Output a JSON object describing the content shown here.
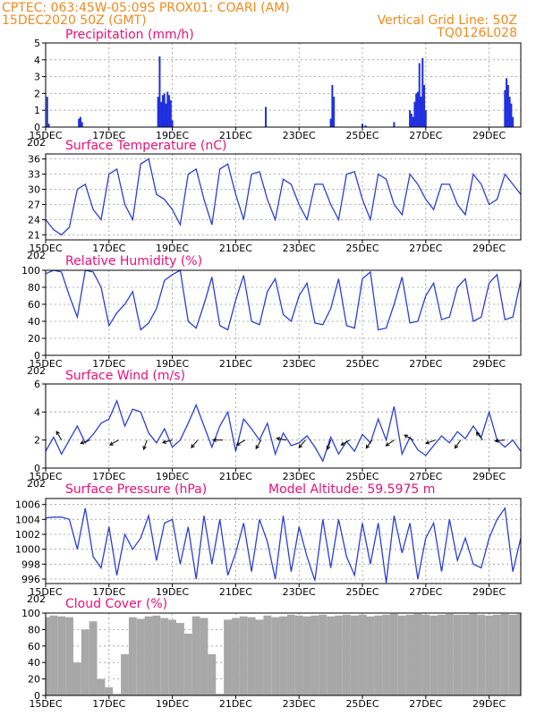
{
  "header": {
    "line1": "CPTEC:   063:45W-05:09S   PROX01: COARI (AM)",
    "line2_left": "15DEC2020 50Z (GMT)",
    "line2_right": "Vertical Grid Line: 50Z",
    "line3_right": "TQ0126L028"
  },
  "colors": {
    "header": "#f08a1e",
    "title": "#e8107a",
    "line": "#2b3fd6",
    "bar": "#1f2fe0",
    "cloud": "#a8a8a8",
    "arrow": "#000000"
  },
  "x_axis": {
    "ticks": [
      "15DEC",
      "17DEC",
      "19DEC",
      "21DEC",
      "23DEC",
      "25DEC",
      "27DEC",
      "29DEC"
    ],
    "stub": "202"
  },
  "chart_data": [
    {
      "id": "precip",
      "type": "bar",
      "title": "Precipitation (mm/h)",
      "ylim": [
        0,
        5
      ],
      "yticks": [
        "0",
        "1",
        "2",
        "3",
        "4",
        "5"
      ],
      "x_days": [
        0.05,
        0.1,
        1.05,
        1.1,
        1.15,
        3.55,
        3.6,
        3.65,
        3.7,
        3.75,
        3.8,
        3.85,
        3.9,
        3.95,
        4.0,
        6.95,
        9.0,
        9.05,
        9.1,
        10.0,
        10.1,
        11.0,
        11.5,
        11.55,
        11.6,
        11.65,
        11.7,
        11.75,
        11.8,
        11.85,
        11.9,
        11.95,
        12.0,
        14.5,
        14.55,
        14.6,
        14.65,
        14.7,
        14.75
      ],
      "values": [
        1.8,
        0.2,
        0.5,
        0.6,
        0.3,
        1.8,
        4.2,
        1.5,
        1.9,
        2.0,
        1.4,
        2.1,
        1.9,
        1.6,
        0.4,
        1.2,
        0.5,
        2.5,
        1.8,
        0.2,
        0.1,
        0.3,
        1.0,
        0.8,
        0.6,
        1.5,
        2.0,
        2.1,
        3.8,
        1.8,
        4.1,
        2.5,
        1.0,
        2.2,
        2.9,
        2.5,
        1.8,
        1.4,
        0.6
      ]
    },
    {
      "id": "temp",
      "type": "line",
      "title": "Surface Temperature (nC)",
      "ylim": [
        20,
        37
      ],
      "yticks": [
        "21",
        "24",
        "27",
        "30",
        "33",
        "36"
      ],
      "x_days": [
        0.0,
        0.25,
        0.5,
        0.75,
        1.0,
        1.25,
        1.5,
        1.75,
        2.0,
        2.25,
        2.5,
        2.75,
        3.0,
        3.25,
        3.5,
        3.75,
        4.0,
        4.25,
        4.5,
        4.75,
        5.0,
        5.25,
        5.5,
        5.75,
        6.0,
        6.25,
        6.5,
        6.75,
        7.0,
        7.25,
        7.5,
        7.75,
        8.0,
        8.25,
        8.5,
        8.75,
        9.0,
        9.25,
        9.5,
        9.75,
        10.0,
        10.25,
        10.5,
        10.75,
        11.0,
        11.25,
        11.5,
        11.75,
        12.0,
        12.25,
        12.5,
        12.75,
        13.0,
        13.25,
        13.5,
        13.75,
        14.0,
        14.25,
        14.5,
        14.75,
        15.0
      ],
      "values": [
        24.0,
        22.0,
        21.0,
        22.5,
        30.0,
        31.0,
        26.0,
        24.0,
        33.0,
        34.0,
        27.0,
        24.0,
        35.0,
        36.0,
        29.0,
        28.0,
        26.0,
        23.0,
        33.0,
        34.0,
        28.0,
        23.0,
        34.0,
        35.0,
        29.0,
        24.0,
        33.0,
        33.5,
        28.0,
        24.0,
        32.0,
        31.0,
        27.0,
        24.0,
        31.0,
        31.0,
        27.0,
        24.0,
        33.0,
        33.5,
        28.0,
        24.0,
        33.0,
        32.0,
        27.0,
        25.0,
        33.0,
        31.0,
        28.0,
        26.0,
        31.0,
        31.0,
        27.0,
        25.0,
        33.0,
        31.0,
        27.0,
        28.0,
        33.0,
        31.0,
        29.0
      ]
    },
    {
      "id": "rh",
      "type": "line",
      "title": "Relative Humidity (%)",
      "ylim": [
        0,
        100
      ],
      "yticks": [
        "0",
        "20",
        "40",
        "60",
        "80",
        "100"
      ],
      "x_days": [
        0.0,
        0.25,
        0.5,
        0.75,
        1.0,
        1.25,
        1.5,
        1.75,
        2.0,
        2.25,
        2.5,
        2.75,
        3.0,
        3.25,
        3.5,
        3.75,
        4.0,
        4.25,
        4.5,
        4.75,
        5.0,
        5.25,
        5.5,
        5.75,
        6.0,
        6.25,
        6.5,
        6.75,
        7.0,
        7.25,
        7.5,
        7.75,
        8.0,
        8.25,
        8.5,
        8.75,
        9.0,
        9.25,
        9.5,
        9.75,
        10.0,
        10.25,
        10.5,
        10.75,
        11.0,
        11.25,
        11.5,
        11.75,
        12.0,
        12.25,
        12.5,
        12.75,
        13.0,
        13.25,
        13.5,
        13.75,
        14.0,
        14.25,
        14.5,
        14.75,
        15.0
      ],
      "values": [
        96.0,
        100.0,
        98.0,
        70.0,
        45.0,
        100.0,
        98.0,
        80.0,
        35.0,
        50.0,
        60.0,
        75.0,
        30.0,
        38.0,
        55.0,
        88.0,
        95.0,
        100.0,
        40.0,
        32.0,
        60.0,
        92.0,
        35.0,
        30.0,
        65.0,
        94.0,
        40.0,
        36.0,
        75.0,
        90.0,
        48.0,
        40.0,
        70.0,
        85.0,
        38.0,
        36.0,
        55.0,
        90.0,
        35.0,
        32.0,
        90.0,
        98.0,
        30.0,
        32.0,
        60.0,
        92.0,
        38.0,
        40.0,
        70.0,
        85.0,
        42.0,
        45.0,
        80.0,
        90.0,
        40.0,
        45.0,
        85.0,
        95.0,
        42.0,
        45.0,
        88.0
      ]
    },
    {
      "id": "wind",
      "type": "line",
      "title": "Surface Wind (m/s)",
      "ylim": [
        0,
        6
      ],
      "yticks": [
        "0",
        "2",
        "4",
        "6"
      ],
      "x_days": [
        0.0,
        0.25,
        0.5,
        0.75,
        1.0,
        1.25,
        1.5,
        1.75,
        2.0,
        2.25,
        2.5,
        2.75,
        3.0,
        3.25,
        3.5,
        3.75,
        4.0,
        4.25,
        4.5,
        4.75,
        5.0,
        5.25,
        5.5,
        5.75,
        6.0,
        6.25,
        6.5,
        6.75,
        7.0,
        7.25,
        7.5,
        7.75,
        8.0,
        8.25,
        8.5,
        8.75,
        9.0,
        9.25,
        9.5,
        9.75,
        10.0,
        10.25,
        10.5,
        10.75,
        11.0,
        11.25,
        11.5,
        11.75,
        12.0,
        12.25,
        12.5,
        12.75,
        13.0,
        13.25,
        13.5,
        13.75,
        14.0,
        14.25,
        14.5,
        14.75,
        15.0
      ],
      "values": [
        1.2,
        2.2,
        1.0,
        2.0,
        3.0,
        1.8,
        2.4,
        3.2,
        3.5,
        4.8,
        3.0,
        4.2,
        4.0,
        2.5,
        1.8,
        2.8,
        1.5,
        2.0,
        3.2,
        4.5,
        3.0,
        1.5,
        3.0,
        4.0,
        1.2,
        3.5,
        2.8,
        2.0,
        3.2,
        1.0,
        2.5,
        1.6,
        1.8,
        2.3,
        1.5,
        0.5,
        2.2,
        1.0,
        1.9,
        1.2,
        2.4,
        1.8,
        3.5,
        2.0,
        4.4,
        1.0,
        2.2,
        1.3,
        0.9,
        1.6,
        2.3,
        1.8,
        2.6,
        2.1,
        3.0,
        2.2,
        4.0,
        2.0,
        1.5,
        2.0,
        1.2
      ],
      "arrow_x_days": [
        0.5,
        1.4,
        2.3,
        3.2,
        4.0,
        4.8,
        5.6,
        6.3,
        6.8,
        7.6,
        8.2,
        9.0,
        9.6,
        10.3,
        11.0,
        11.6,
        12.3,
        13.1,
        13.8,
        14.5
      ],
      "arrow_dir_deg": [
        120,
        200,
        210,
        250,
        195,
        230,
        180,
        210,
        240,
        170,
        230,
        250,
        210,
        235,
        215,
        150,
        200,
        235,
        130,
        185
      ]
    },
    {
      "id": "pres",
      "type": "line",
      "title": "Surface Pressure (hPa)",
      "annotation": "Model Altitude: 59.5975  m",
      "ylim": [
        995.4,
        1006.8
      ],
      "yticks": [
        "996",
        "998",
        "1000",
        "1002",
        "1004",
        "1006"
      ],
      "x_days": [
        0.0,
        0.25,
        0.5,
        0.75,
        1.0,
        1.25,
        1.5,
        1.75,
        2.0,
        2.25,
        2.5,
        2.75,
        3.0,
        3.25,
        3.5,
        3.75,
        4.0,
        4.25,
        4.5,
        4.75,
        5.0,
        5.25,
        5.5,
        5.75,
        6.0,
        6.25,
        6.5,
        6.75,
        7.0,
        7.25,
        7.5,
        7.75,
        8.0,
        8.25,
        8.5,
        8.75,
        9.0,
        9.25,
        9.5,
        9.75,
        10.0,
        10.25,
        10.5,
        10.75,
        11.0,
        11.25,
        11.5,
        11.75,
        12.0,
        12.25,
        12.5,
        12.75,
        13.0,
        13.25,
        13.5,
        13.75,
        14.0,
        14.25,
        14.5,
        14.75,
        15.0
      ],
      "values": [
        1004.2,
        1004.3,
        1004.3,
        1004.0,
        1000.0,
        1005.5,
        999.0,
        997.5,
        1003.0,
        996.5,
        1002.0,
        1000.0,
        1001.5,
        1004.5,
        998.5,
        1003.5,
        1004.0,
        998.0,
        1003.0,
        996.0,
        1004.5,
        998.0,
        1004.0,
        996.5,
        999.5,
        1003.5,
        997.0,
        1004.0,
        1001.0,
        996.0,
        1004.5,
        997.0,
        1003.0,
        999.0,
        995.8,
        1004.0,
        997.5,
        1004.0,
        999.0,
        996.5,
        1003.5,
        998.0,
        1003.5,
        995.5,
        1004.5,
        999.5,
        1003.5,
        996.0,
        1001.5,
        1003.5,
        997.0,
        1004.0,
        998.5,
        1001.5,
        998.0,
        997.5,
        1001.5,
        1004.0,
        1005.5,
        997.0,
        1001.5
      ]
    },
    {
      "id": "cloud",
      "type": "bar",
      "title": "Cloud Cover (%)",
      "ylim": [
        0,
        100
      ],
      "yticks": [
        "0",
        "20",
        "40",
        "60",
        "80",
        "100"
      ],
      "x_days": [
        0.0,
        0.25,
        0.5,
        0.75,
        1.0,
        1.25,
        1.5,
        1.75,
        2.0,
        2.25,
        2.5,
        2.75,
        3.0,
        3.25,
        3.5,
        3.75,
        4.0,
        4.25,
        4.5,
        4.75,
        5.0,
        5.25,
        5.5,
        5.75,
        6.0,
        6.25,
        6.5,
        6.75,
        7.0,
        7.25,
        7.5,
        7.75,
        8.0,
        8.25,
        8.5,
        8.75,
        9.0,
        9.25,
        9.5,
        9.75,
        10.0,
        10.25,
        10.5,
        10.75,
        11.0,
        11.25,
        11.5,
        11.75,
        12.0,
        12.25,
        12.5,
        12.75,
        13.0,
        13.25,
        13.5,
        13.75,
        14.0,
        14.25,
        14.5,
        14.75,
        15.0
      ],
      "values": [
        95,
        97,
        96,
        95,
        40,
        80,
        90,
        20,
        10,
        2,
        50,
        95,
        93,
        96,
        97,
        94,
        92,
        88,
        75,
        96,
        94,
        50,
        2,
        92,
        94,
        96,
        95,
        92,
        97,
        95,
        96,
        98,
        97,
        96,
        97,
        98,
        96,
        97,
        98,
        97,
        98,
        96,
        97,
        98,
        99,
        97,
        98,
        99,
        98,
        97,
        98,
        99,
        98,
        98,
        99,
        98,
        97,
        98,
        99,
        98,
        99
      ]
    }
  ]
}
